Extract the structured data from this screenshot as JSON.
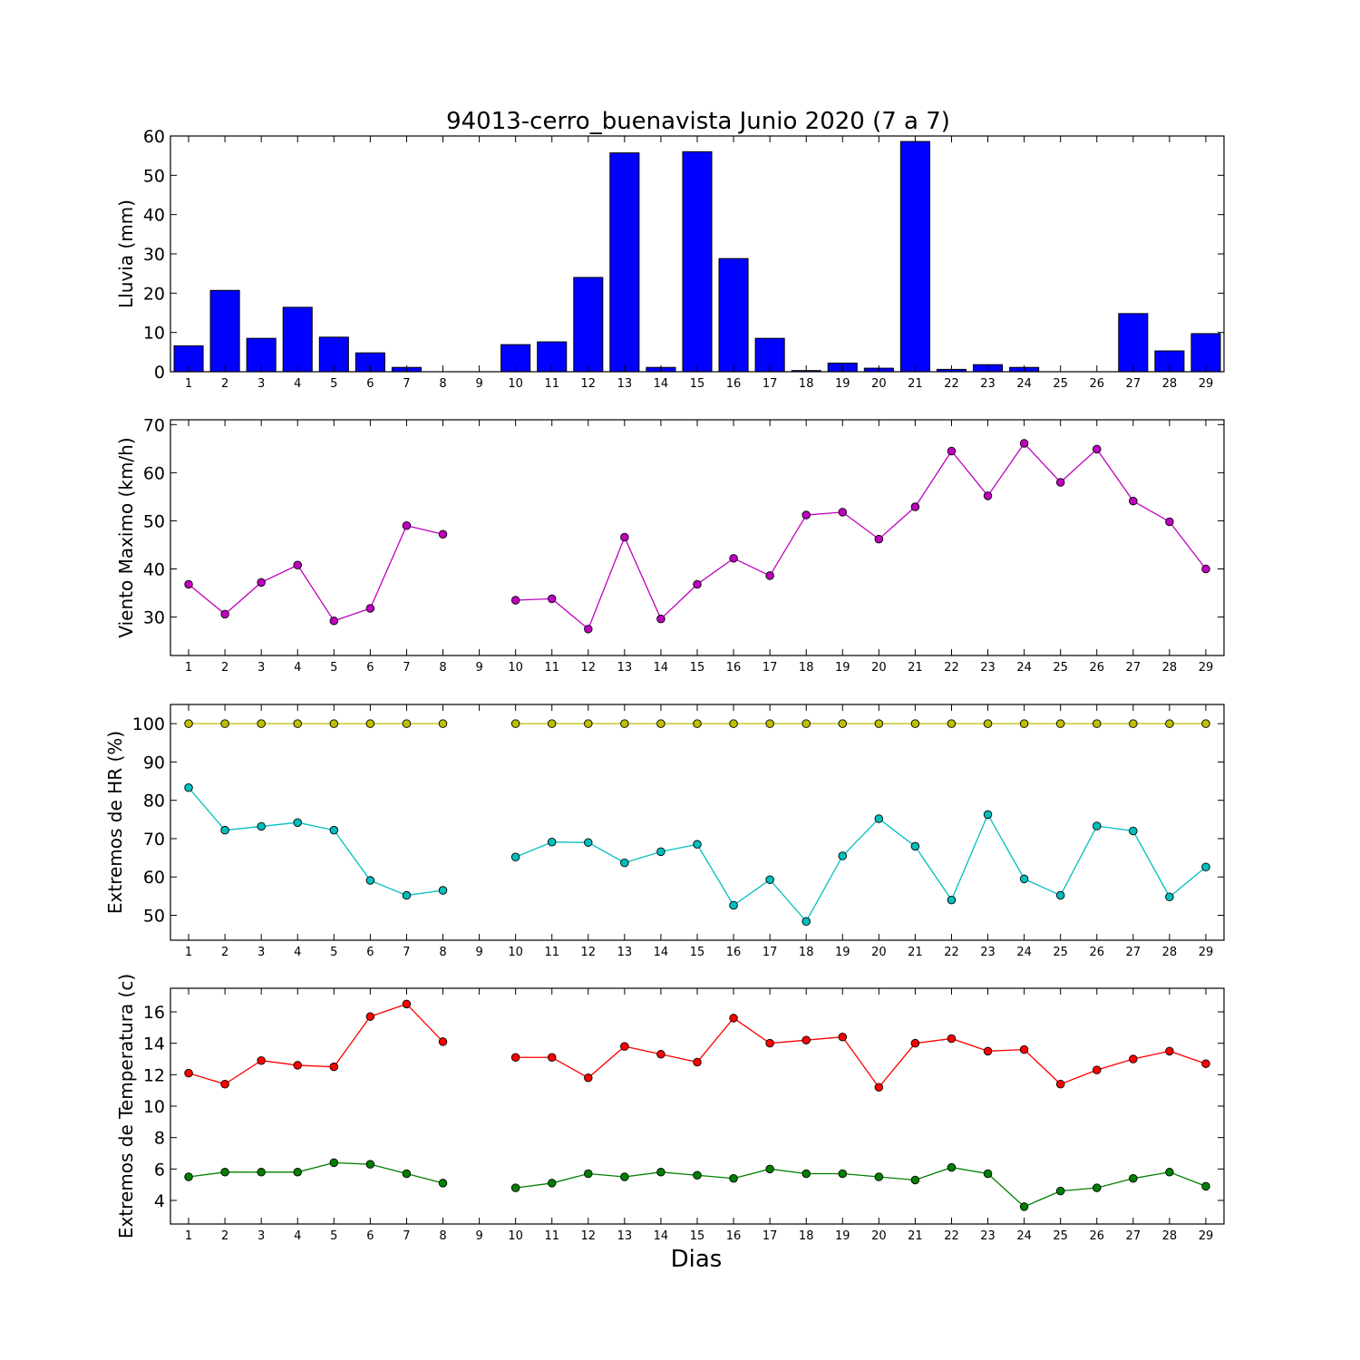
{
  "chart_data": {
    "title": "94013-cerro_buenavista Junio 2020  (7 a 7)",
    "xlabel": "Dias",
    "days": [
      1,
      2,
      3,
      4,
      5,
      6,
      7,
      8,
      9,
      10,
      11,
      12,
      13,
      14,
      15,
      16,
      17,
      18,
      19,
      20,
      21,
      22,
      23,
      24,
      25,
      26,
      27,
      28,
      29
    ],
    "panels": [
      {
        "type": "bar",
        "ylabel": "Lluvia (mm)",
        "ylim": [
          0,
          60
        ],
        "yticks": [
          0,
          10,
          20,
          30,
          40,
          50,
          60
        ],
        "series": [
          {
            "color": "#0000ff",
            "values": [
              6.6,
              20.7,
              8.5,
              16.4,
              8.8,
              4.8,
              1.1,
              0,
              0,
              6.9,
              7.6,
              24.0,
              55.7,
              1.1,
              56.0,
              28.8,
              8.5,
              0.3,
              2.2,
              0.9,
              58.6,
              0.6,
              1.8,
              1.1,
              0,
              0,
              14.8,
              5.3,
              9.7
            ]
          }
        ]
      },
      {
        "type": "line",
        "ylabel": "Viento Maximo (km/h)",
        "ylim": [
          22,
          71
        ],
        "yticks": [
          30,
          40,
          50,
          60,
          70
        ],
        "series": [
          {
            "color": "#bf00bf",
            "values": [
              36.8,
              30.6,
              37.2,
              40.8,
              29.2,
              31.8,
              49.0,
              47.2,
              null,
              33.5,
              33.8,
              27.5,
              46.6,
              29.6,
              36.8,
              42.2,
              38.6,
              51.2,
              51.8,
              46.2,
              52.9,
              64.5,
              55.2,
              66.1,
              58.0,
              64.9,
              54.1,
              49.8,
              40.0
            ]
          }
        ]
      },
      {
        "type": "line",
        "ylabel": "Extremos de HR (%)",
        "ylim": [
          43.5,
          105
        ],
        "yticks": [
          50,
          60,
          70,
          80,
          90,
          100
        ],
        "series": [
          {
            "color": "#bfbf00",
            "values": [
              100,
              100,
              100,
              100,
              100,
              100,
              100,
              100,
              null,
              100,
              100,
              100,
              100,
              100,
              100,
              100,
              100,
              100,
              100,
              100,
              100,
              100,
              100,
              100,
              100,
              100,
              100,
              100,
              100
            ]
          },
          {
            "color": "#00bfbf",
            "values": [
              83.3,
              72.2,
              73.2,
              74.2,
              72.2,
              59.1,
              55.2,
              56.5,
              null,
              65.2,
              69.1,
              69.0,
              63.7,
              66.6,
              68.5,
              52.6,
              59.3,
              48.4,
              65.5,
              75.2,
              68.0,
              54.0,
              76.3,
              59.5,
              55.2,
              73.3,
              72.0,
              54.8,
              62.6
            ]
          }
        ]
      },
      {
        "type": "line",
        "ylabel": "Extremos de Temperatura (c)",
        "ylim": [
          2.5,
          17.5
        ],
        "yticks": [
          4,
          6,
          8,
          10,
          12,
          14,
          16
        ],
        "series": [
          {
            "color": "#ff0000",
            "values": [
              12.1,
              11.4,
              12.9,
              12.6,
              12.5,
              15.7,
              16.5,
              14.1,
              null,
              13.1,
              13.1,
              11.8,
              13.8,
              13.3,
              12.8,
              15.6,
              14.0,
              14.2,
              14.4,
              11.2,
              14.0,
              14.3,
              13.5,
              13.6,
              11.4,
              12.3,
              13.0,
              13.5,
              12.7
            ]
          },
          {
            "color": "#008000",
            "values": [
              5.5,
              5.8,
              5.8,
              5.8,
              6.4,
              6.3,
              5.7,
              5.1,
              null,
              4.8,
              5.1,
              5.7,
              5.5,
              5.8,
              5.6,
              5.4,
              6.0,
              5.7,
              5.7,
              5.5,
              5.3,
              6.1,
              5.7,
              3.6,
              4.6,
              4.8,
              5.4,
              5.8,
              4.9
            ]
          }
        ]
      }
    ]
  }
}
